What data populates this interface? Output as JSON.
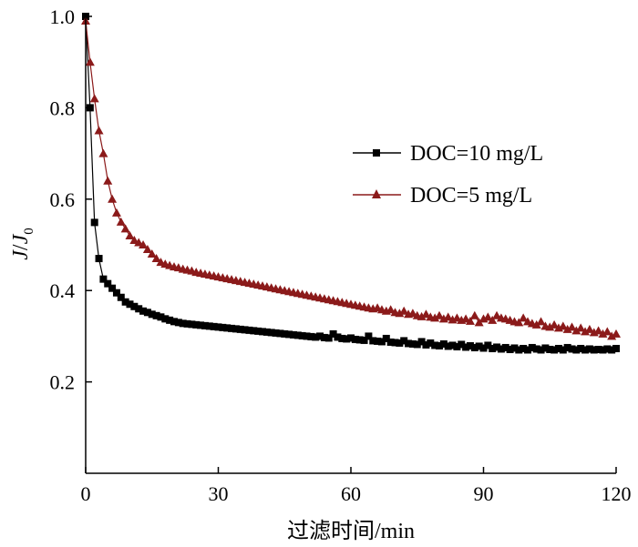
{
  "chart_data": {
    "type": "line",
    "title": "",
    "xlabel": "过滤时间/min",
    "ylabel": {
      "part1": "J",
      "slash": "/",
      "part2": "J",
      "sub": "0"
    },
    "xlim": [
      0,
      120
    ],
    "ylim": [
      0,
      1.0
    ],
    "xticks": [
      0,
      30,
      60,
      90,
      120
    ],
    "xtick_labels": [
      "0",
      "30",
      "60",
      "90",
      "120"
    ],
    "yticks": [
      0.2,
      0.4,
      0.6,
      0.8,
      1.0
    ],
    "ytick_labels": [
      "0.2",
      "0.4",
      "0.6",
      "0.8",
      "1.0"
    ],
    "grid": false,
    "legend_position": "top-right",
    "series": [
      {
        "name": "DOC=10 mg/L",
        "color": "#000000",
        "marker": "square",
        "x": [
          0,
          1,
          2,
          3,
          4,
          5,
          6,
          7,
          8,
          9,
          10,
          11,
          12,
          13,
          14,
          15,
          16,
          17,
          18,
          19,
          20,
          21,
          22,
          23,
          24,
          25,
          26,
          27,
          28,
          29,
          30,
          31,
          32,
          33,
          34,
          35,
          36,
          37,
          38,
          39,
          40,
          41,
          42,
          43,
          44,
          45,
          46,
          47,
          48,
          49,
          50,
          51,
          52,
          53,
          54,
          55,
          56,
          57,
          58,
          59,
          60,
          61,
          62,
          63,
          64,
          65,
          66,
          67,
          68,
          69,
          70,
          71,
          72,
          73,
          74,
          75,
          76,
          77,
          78,
          79,
          80,
          81,
          82,
          83,
          84,
          85,
          86,
          87,
          88,
          89,
          90,
          91,
          92,
          93,
          94,
          95,
          96,
          97,
          98,
          99,
          100,
          101,
          102,
          103,
          104,
          105,
          106,
          107,
          108,
          109,
          110,
          111,
          112,
          113,
          114,
          115,
          116,
          117,
          118,
          119,
          120
        ],
        "y": [
          1.0,
          0.8,
          0.549,
          0.47,
          0.425,
          0.415,
          0.405,
          0.395,
          0.385,
          0.375,
          0.37,
          0.365,
          0.36,
          0.355,
          0.352,
          0.348,
          0.345,
          0.342,
          0.338,
          0.335,
          0.332,
          0.33,
          0.328,
          0.327,
          0.326,
          0.325,
          0.324,
          0.323,
          0.322,
          0.321,
          0.32,
          0.319,
          0.318,
          0.317,
          0.316,
          0.315,
          0.314,
          0.313,
          0.312,
          0.311,
          0.31,
          0.309,
          0.308,
          0.307,
          0.306,
          0.305,
          0.304,
          0.303,
          0.302,
          0.301,
          0.3,
          0.299,
          0.298,
          0.3,
          0.297,
          0.296,
          0.305,
          0.298,
          0.295,
          0.294,
          0.296,
          0.293,
          0.292,
          0.291,
          0.3,
          0.29,
          0.289,
          0.288,
          0.295,
          0.287,
          0.286,
          0.285,
          0.29,
          0.284,
          0.283,
          0.282,
          0.288,
          0.281,
          0.285,
          0.28,
          0.279,
          0.283,
          0.278,
          0.28,
          0.277,
          0.282,
          0.276,
          0.279,
          0.275,
          0.278,
          0.274,
          0.28,
          0.273,
          0.276,
          0.272,
          0.275,
          0.271,
          0.274,
          0.27,
          0.273,
          0.27,
          0.275,
          0.272,
          0.27,
          0.274,
          0.271,
          0.27,
          0.273,
          0.27,
          0.275,
          0.272,
          0.27,
          0.273,
          0.27,
          0.272,
          0.27,
          0.271,
          0.27,
          0.272,
          0.27,
          0.273
        ]
      },
      {
        "name": "DOC=5 mg/L",
        "color": "#8b1a1a",
        "marker": "triangle",
        "x": [
          0,
          1,
          2,
          3,
          4,
          5,
          6,
          7,
          8,
          9,
          10,
          11,
          12,
          13,
          14,
          15,
          16,
          17,
          18,
          19,
          20,
          21,
          22,
          23,
          24,
          25,
          26,
          27,
          28,
          29,
          30,
          31,
          32,
          33,
          34,
          35,
          36,
          37,
          38,
          39,
          40,
          41,
          42,
          43,
          44,
          45,
          46,
          47,
          48,
          49,
          50,
          51,
          52,
          53,
          54,
          55,
          56,
          57,
          58,
          59,
          60,
          61,
          62,
          63,
          64,
          65,
          66,
          67,
          68,
          69,
          70,
          71,
          72,
          73,
          74,
          75,
          76,
          77,
          78,
          79,
          80,
          81,
          82,
          83,
          84,
          85,
          86,
          87,
          88,
          89,
          90,
          91,
          92,
          93,
          94,
          95,
          96,
          97,
          98,
          99,
          100,
          101,
          102,
          103,
          104,
          105,
          106,
          107,
          108,
          109,
          110,
          111,
          112,
          113,
          114,
          115,
          116,
          117,
          118,
          119,
          120
        ],
        "y": [
          0.99,
          0.9,
          0.82,
          0.75,
          0.7,
          0.64,
          0.6,
          0.57,
          0.55,
          0.535,
          0.52,
          0.51,
          0.505,
          0.5,
          0.49,
          0.48,
          0.47,
          0.462,
          0.458,
          0.455,
          0.452,
          0.45,
          0.447,
          0.445,
          0.443,
          0.44,
          0.438,
          0.436,
          0.434,
          0.432,
          0.43,
          0.428,
          0.426,
          0.424,
          0.422,
          0.42,
          0.418,
          0.416,
          0.414,
          0.412,
          0.41,
          0.408,
          0.406,
          0.404,
          0.402,
          0.4,
          0.398,
          0.396,
          0.394,
          0.392,
          0.39,
          0.388,
          0.386,
          0.384,
          0.382,
          0.38,
          0.378,
          0.376,
          0.374,
          0.372,
          0.37,
          0.368,
          0.366,
          0.364,
          0.362,
          0.36,
          0.362,
          0.358,
          0.355,
          0.358,
          0.352,
          0.35,
          0.355,
          0.348,
          0.35,
          0.345,
          0.343,
          0.348,
          0.342,
          0.34,
          0.345,
          0.338,
          0.342,
          0.336,
          0.34,
          0.335,
          0.338,
          0.333,
          0.345,
          0.33,
          0.338,
          0.342,
          0.335,
          0.345,
          0.34,
          0.338,
          0.335,
          0.332,
          0.33,
          0.34,
          0.332,
          0.328,
          0.325,
          0.332,
          0.322,
          0.32,
          0.325,
          0.318,
          0.322,
          0.315,
          0.32,
          0.312,
          0.318,
          0.31,
          0.315,
          0.308,
          0.312,
          0.305,
          0.31,
          0.3,
          0.305
        ]
      }
    ]
  }
}
